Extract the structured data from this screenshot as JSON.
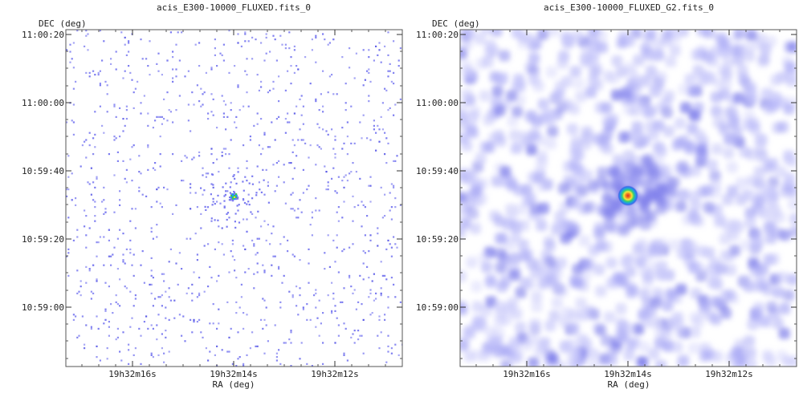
{
  "chart_data": [
    {
      "type": "heatmap",
      "title": "acis_E300-10000_FLUXED.fits_0",
      "xlabel": "RA (deg)",
      "ylabel": "DEC (deg)",
      "x_ticks": [
        "19h32m16s",
        "19h32m14s",
        "19h32m12s"
      ],
      "y_ticks": [
        "11:00:20",
        "11:00:00",
        "10:59:40",
        "10:59:20",
        "10:59:00"
      ],
      "image_style": "sparse single-photon pixels (unsmoothed)",
      "source": {
        "ra": "19h32m14s",
        "dec": "10:59:33"
      },
      "colormap": [
        "#7b7bf0",
        "#1d9bf0",
        "#3cc75a",
        "#f3e23a",
        "#e8322a"
      ],
      "grid": false
    },
    {
      "type": "heatmap",
      "title": "acis_E300-10000_FLUXED_G2.fits_0",
      "xlabel": "RA (deg)",
      "ylabel": "DEC (deg)",
      "x_ticks": [
        "19h32m16s",
        "19h32m14s",
        "19h32m12s"
      ],
      "y_ticks": [
        "11:00:20",
        "11:00:00",
        "10:59:40",
        "10:59:20",
        "10:59:00"
      ],
      "image_style": "gaussian-smoothed (G2)",
      "source": {
        "ra": "19h32m14s",
        "dec": "10:59:33"
      },
      "colormap": [
        "#c8c8ff",
        "#8f8ff0",
        "#3d6be8",
        "#1fa0e0",
        "#3ccf6a",
        "#f5e53a",
        "#f08a25",
        "#e02a20"
      ],
      "grid": false
    }
  ]
}
